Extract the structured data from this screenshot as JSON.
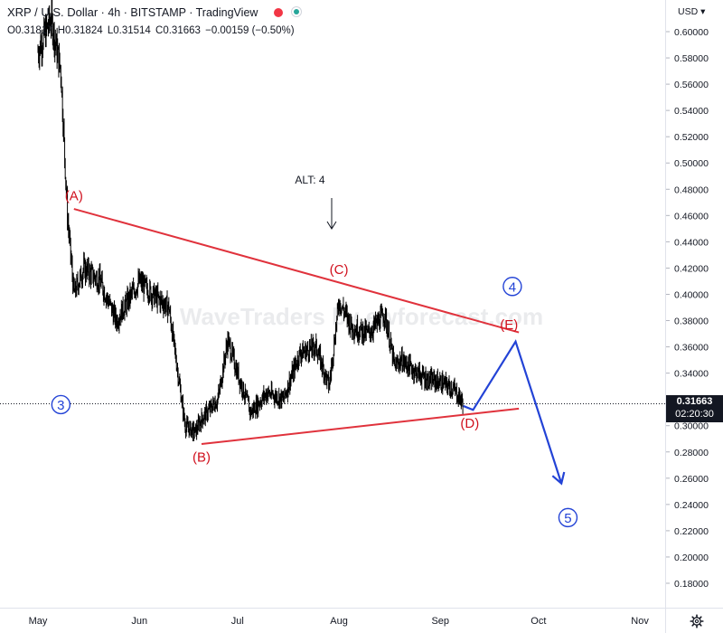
{
  "header": {
    "symbol": "XRP / U.S. Dollar",
    "interval": "4h",
    "exchange": "BITSTAMP",
    "platform": "TradingView",
    "separator": "·",
    "icons": [
      "red-close-marker",
      "green-status-dot"
    ],
    "status_colors": {
      "red": "#f23645",
      "green": "#26a69a"
    }
  },
  "ohlc": {
    "open_label": "O",
    "open": "0.31817",
    "high_label": "H",
    "high": "0.31824",
    "low_label": "L",
    "low": "0.31514",
    "close_label": "C",
    "close": "0.31663",
    "change": "−0.00159 (−0.50%)"
  },
  "price_scale": {
    "currency": "USD",
    "ticks": [
      "0.60000",
      "0.58000",
      "0.56000",
      "0.54000",
      "0.52000",
      "0.50000",
      "0.48000",
      "0.46000",
      "0.44000",
      "0.42000",
      "0.40000",
      "0.38000",
      "0.36000",
      "0.34000",
      "0.32000",
      "0.30000",
      "0.28000",
      "0.26000",
      "0.24000",
      "0.22000",
      "0.20000",
      "0.18000"
    ],
    "current_price": "0.31663",
    "countdown": "02:20:30"
  },
  "time_scale": {
    "labels": [
      "May",
      "Jun",
      "Jul",
      "Aug",
      "Sep",
      "Oct",
      "Nov"
    ]
  },
  "watermark": "WaveTraders by ewforecast.com",
  "annotations": {
    "A": "(A)",
    "B": "(B)",
    "C": "(C)",
    "D": "(D)",
    "E": "(E)",
    "wave3": "3",
    "wave4": "4",
    "wave5": "5",
    "alt": "ALT: 4"
  },
  "colors": {
    "candle": "#000000",
    "triangle": "#e0323c",
    "projection": "#2343d6",
    "label_red": "#d0101d",
    "label_blue": "#2343d6",
    "axis_text": "#131722",
    "price_tag_bg": "#131722"
  },
  "chart_data": {
    "type": "line",
    "title": "XRP / U.S. Dollar · 4h · BITSTAMP",
    "xlabel": "",
    "ylabel": "",
    "x": [
      "May 1",
      "May 5",
      "May 8",
      "May 10",
      "May 12",
      "May 15",
      "May 20",
      "May 25",
      "Jun 1",
      "Jun 5",
      "Jun 10",
      "Jun 15",
      "Jun 18",
      "Jun 20",
      "Jun 25",
      "Jun 28",
      "Jul 1",
      "Jul 5",
      "Jul 10",
      "Jul 15",
      "Jul 20",
      "Jul 25",
      "Jul 29",
      "Aug 1",
      "Aug 5",
      "Aug 10",
      "Aug 15",
      "Aug 18",
      "Aug 20",
      "Aug 25",
      "Aug 28",
      "Sep 1",
      "Sep 5",
      "Sep 8"
    ],
    "series": [
      {
        "values": [
          0.585,
          0.61,
          0.57,
          0.46,
          0.4,
          0.42,
          0.41,
          0.38,
          0.41,
          0.4,
          0.39,
          0.3,
          0.295,
          0.305,
          0.32,
          0.365,
          0.34,
          0.31,
          0.325,
          0.32,
          0.355,
          0.36,
          0.33,
          0.395,
          0.375,
          0.37,
          0.385,
          0.345,
          0.35,
          0.34,
          0.335,
          0.333,
          0.328,
          0.317
        ]
      }
    ],
    "ylim": [
      0.17,
      0.61
    ],
    "grid": false,
    "current_price": 0.31663,
    "trendlines": [
      {
        "label": "upper",
        "from": [
          "May 12",
          0.465
        ],
        "to": [
          "Sep 25",
          0.371
        ]
      },
      {
        "label": "lower",
        "from": [
          "Jun 20",
          0.286
        ],
        "to": [
          "Sep 25",
          0.313
        ]
      }
    ],
    "projection": [
      [
        "Sep 8",
        0.315
      ],
      [
        "Sep 11",
        0.312
      ],
      [
        "Sep 24",
        0.364
      ],
      [
        "Oct 8",
        0.256
      ]
    ],
    "wave_labels": [
      {
        "text": "(A)",
        "x": "May 12",
        "y": 0.475
      },
      {
        "text": "(B)",
        "x": "Jun 20",
        "y": 0.276
      },
      {
        "text": "(C)",
        "x": "Aug 1",
        "y": 0.419
      },
      {
        "text": "(D)",
        "x": "Sep 10",
        "y": 0.302
      },
      {
        "text": "(E)",
        "x": "Sep 22",
        "y": 0.377
      },
      {
        "text": "3",
        "x": "May 8",
        "y": 0.316
      },
      {
        "text": "4",
        "x": "Sep 23",
        "y": 0.406
      },
      {
        "text": "5",
        "x": "Oct 10",
        "y": 0.23
      }
    ]
  }
}
